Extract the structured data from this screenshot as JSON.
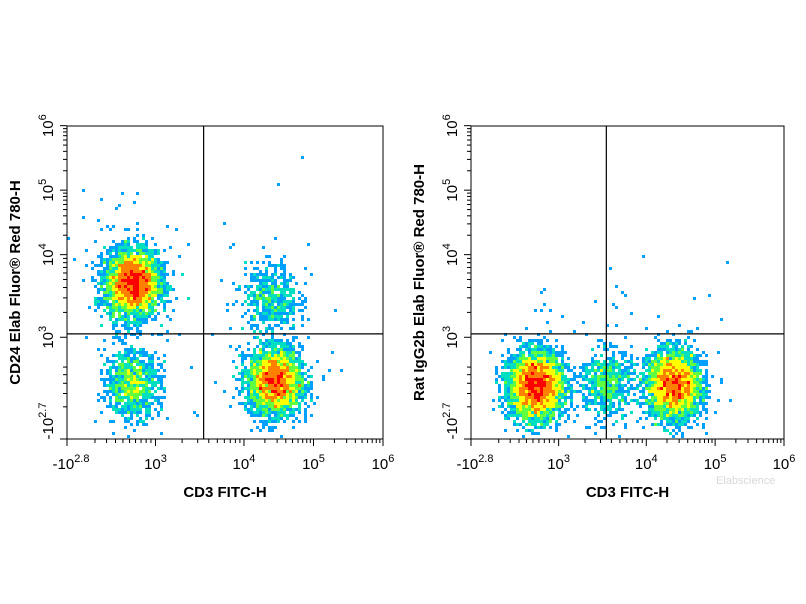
{
  "chart_data": [
    {
      "type": "scatter",
      "xlabel": "CD3 FITC-H",
      "ylabel": "CD24 Elab Fluor® Red 780-H",
      "x_scale": "biexponential",
      "y_scale": "biexponential",
      "xlim": [
        "-10^2.8",
        "10^6"
      ],
      "ylim": [
        "-10^2.7",
        "10^6"
      ],
      "x_ticks": [
        {
          "base": "-10",
          "exp": "2.8"
        },
        {
          "base": "10",
          "exp": "3"
        },
        {
          "base": "10",
          "exp": "4"
        },
        {
          "base": "10",
          "exp": "5"
        },
        {
          "base": "10",
          "exp": "6"
        }
      ],
      "y_ticks": [
        {
          "base": "-10",
          "exp": "2.7"
        },
        {
          "base": "10",
          "exp": "3"
        },
        {
          "base": "10",
          "exp": "4"
        },
        {
          "base": "10",
          "exp": "5"
        },
        {
          "base": "10",
          "exp": "6"
        }
      ],
      "gate": {
        "x": 3500,
        "y": 1100
      },
      "populations": [
        {
          "x": 550,
          "y": 4500,
          "count": 3600
        },
        {
          "x": 550,
          "y": 300,
          "count": 900
        },
        {
          "x": 28000,
          "y": 320,
          "count": 3000
        },
        {
          "x": 25000,
          "y": 3000,
          "count": 450
        }
      ],
      "noise": 260
    },
    {
      "type": "scatter",
      "xlabel": "CD3 FITC-H",
      "ylabel": "Rat IgG2b Elab Fluor® Red 780-H",
      "x_scale": "biexponential",
      "y_scale": "biexponential",
      "xlim": [
        "-10^2.8",
        "10^6"
      ],
      "ylim": [
        "-10^2.7",
        "10^6"
      ],
      "x_ticks": [
        {
          "base": "-10",
          "exp": "2.8"
        },
        {
          "base": "10",
          "exp": "3"
        },
        {
          "base": "10",
          "exp": "4"
        },
        {
          "base": "10",
          "exp": "5"
        },
        {
          "base": "10",
          "exp": "6"
        }
      ],
      "y_ticks": [
        {
          "base": "-10",
          "exp": "2.7"
        },
        {
          "base": "10",
          "exp": "3"
        },
        {
          "base": "10",
          "exp": "4"
        },
        {
          "base": "10",
          "exp": "5"
        },
        {
          "base": "10",
          "exp": "6"
        }
      ],
      "gate": {
        "x": 3500,
        "y": 1100
      },
      "populations": [
        {
          "x": 550,
          "y": 270,
          "count": 4200
        },
        {
          "x": 25000,
          "y": 280,
          "count": 3400
        },
        {
          "x": 3500,
          "y": 300,
          "count": 600
        }
      ],
      "noise": 120
    }
  ],
  "watermark": "Elabscience",
  "colors": {
    "density_scale": [
      "#0000ff",
      "#00a0ff",
      "#00e0c0",
      "#60ff40",
      "#ffff00",
      "#ff8000",
      "#ff0000"
    ],
    "axis": "#000000"
  }
}
